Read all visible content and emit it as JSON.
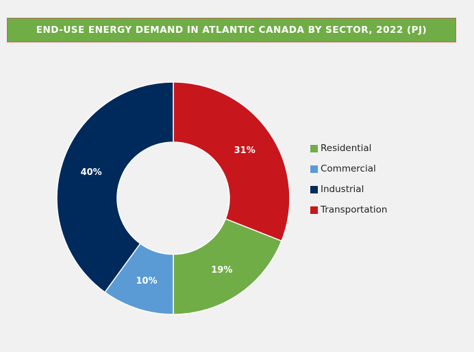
{
  "title": "END-USE ENERGY DEMAND IN ATLANTIC CANADA BY SECTOR, 2022 (PJ)",
  "chart_data": {
    "type": "pie",
    "donut": true,
    "title": "END-USE ENERGY DEMAND IN ATLANTIC CANADA BY SECTOR, 2022 (PJ)",
    "categories": [
      "Residential",
      "Commercial",
      "Industrial",
      "Transportation"
    ],
    "values": [
      19,
      10,
      40,
      31
    ],
    "value_labels": [
      "19%",
      "10%",
      "40%",
      "31%"
    ],
    "colors": [
      "#71ad47",
      "#5b9bd5",
      "#002a5c",
      "#c8161d"
    ],
    "legend_position": "right"
  }
}
